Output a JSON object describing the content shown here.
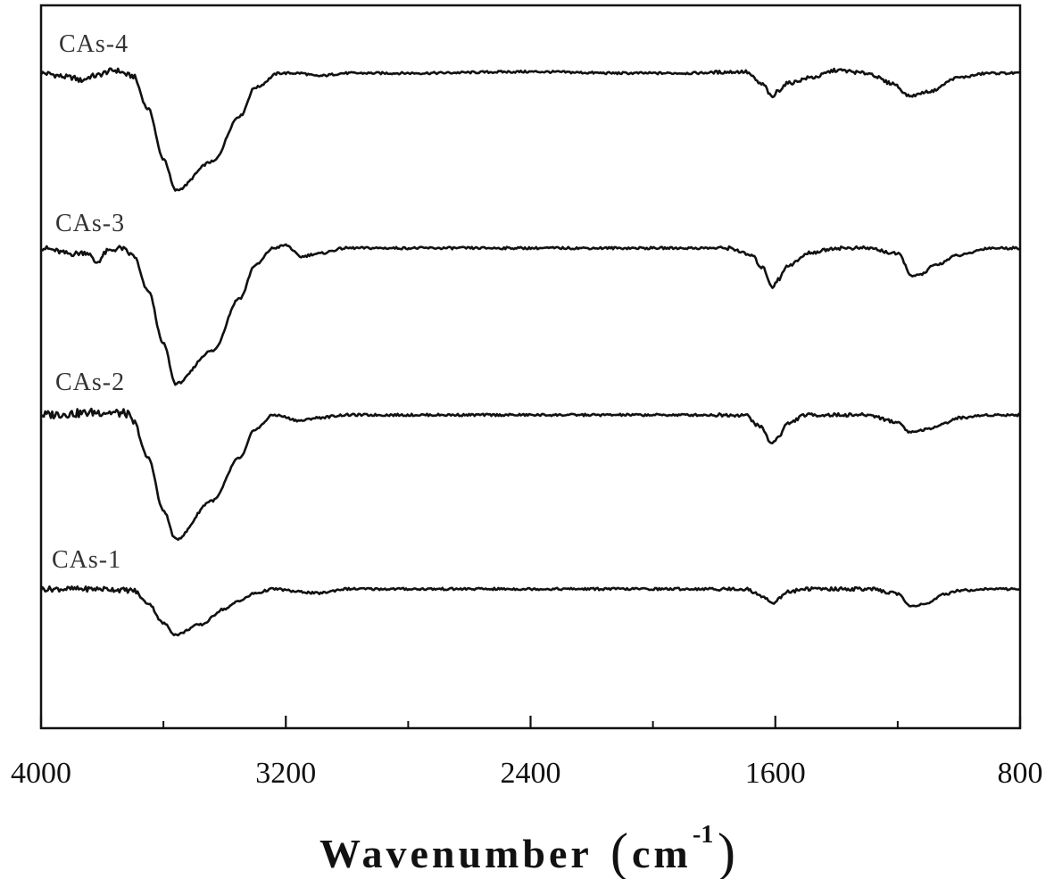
{
  "chart_data": {
    "type": "line",
    "title": "",
    "xlabel": "Wavenumber",
    "xlabel_unit_open": "(",
    "xlabel_unit": "cm",
    "xlabel_unit_exp": "-1",
    "xlabel_unit_close": ")",
    "ylabel": "",
    "xlim": [
      4000,
      800
    ],
    "x_reversed": true,
    "x_ticks": [
      "4000",
      "3200",
      "2400",
      "1600",
      "800"
    ],
    "x_tick_values": [
      4000,
      3200,
      2400,
      1600,
      800
    ],
    "x_minor_ticks": [
      3600,
      2800,
      2000,
      1200
    ],
    "y_ticks_shown": false,
    "grid": false,
    "legend": "none",
    "series": [
      {
        "name": "CAs-4",
        "offset": 3,
        "points": [
          [
            4000,
            0
          ],
          [
            3900,
            -0.03
          ],
          [
            3870,
            -0.05
          ],
          [
            3830,
            -0.02
          ],
          [
            3760,
            0.02
          ],
          [
            3700,
            -0.02
          ],
          [
            3650,
            -0.25
          ],
          [
            3600,
            -0.6
          ],
          [
            3560,
            -0.82
          ],
          [
            3440,
            -0.62
          ],
          [
            3350,
            -0.3
          ],
          [
            3300,
            -0.1
          ],
          [
            3220,
            0
          ],
          [
            3150,
            0
          ],
          [
            3100,
            -0.02
          ],
          [
            3000,
            0
          ],
          [
            2800,
            0
          ],
          [
            2400,
            0.01
          ],
          [
            2100,
            0
          ],
          [
            1900,
            0
          ],
          [
            1700,
            0.01
          ],
          [
            1640,
            -0.08
          ],
          [
            1610,
            -0.17
          ],
          [
            1590,
            -0.12
          ],
          [
            1560,
            -0.07
          ],
          [
            1480,
            -0.03
          ],
          [
            1400,
            0.02
          ],
          [
            1300,
            0
          ],
          [
            1220,
            -0.07
          ],
          [
            1160,
            -0.16
          ],
          [
            1100,
            -0.13
          ],
          [
            1000,
            -0.03
          ],
          [
            900,
            0
          ],
          [
            800,
            0
          ]
        ]
      },
      {
        "name": "CAs-3",
        "offset": 2,
        "points": [
          [
            4000,
            0
          ],
          [
            3900,
            -0.04
          ],
          [
            3850,
            -0.03
          ],
          [
            3820,
            -0.1
          ],
          [
            3780,
            -0.02
          ],
          [
            3740,
            0
          ],
          [
            3700,
            -0.05
          ],
          [
            3650,
            -0.3
          ],
          [
            3600,
            -0.67
          ],
          [
            3560,
            -0.95
          ],
          [
            3440,
            -0.72
          ],
          [
            3350,
            -0.35
          ],
          [
            3300,
            -0.12
          ],
          [
            3240,
            0
          ],
          [
            3200,
            0.02
          ],
          [
            3150,
            -0.06
          ],
          [
            3100,
            -0.04
          ],
          [
            3000,
            0
          ],
          [
            2800,
            0
          ],
          [
            2400,
            0
          ],
          [
            2000,
            0
          ],
          [
            1750,
            0
          ],
          [
            1680,
            -0.05
          ],
          [
            1640,
            -0.14
          ],
          [
            1610,
            -0.27
          ],
          [
            1590,
            -0.22
          ],
          [
            1560,
            -0.12
          ],
          [
            1480,
            -0.03
          ],
          [
            1400,
            0
          ],
          [
            1300,
            0
          ],
          [
            1200,
            -0.04
          ],
          [
            1150,
            -0.2
          ],
          [
            1120,
            -0.18
          ],
          [
            1080,
            -0.12
          ],
          [
            1000,
            -0.05
          ],
          [
            900,
            0
          ],
          [
            800,
            0
          ]
        ]
      },
      {
        "name": "CAs-2",
        "offset": 1,
        "points": [
          [
            4000,
            0
          ],
          [
            3900,
            0.01
          ],
          [
            3800,
            0.02
          ],
          [
            3720,
            0.01
          ],
          [
            3700,
            -0.05
          ],
          [
            3650,
            -0.3
          ],
          [
            3600,
            -0.67
          ],
          [
            3560,
            -0.87
          ],
          [
            3440,
            -0.6
          ],
          [
            3350,
            -0.3
          ],
          [
            3300,
            -0.1
          ],
          [
            3240,
            0
          ],
          [
            3150,
            -0.04
          ],
          [
            3100,
            -0.02
          ],
          [
            3000,
            0
          ],
          [
            2400,
            0
          ],
          [
            2000,
            0
          ],
          [
            1700,
            0
          ],
          [
            1650,
            -0.08
          ],
          [
            1610,
            -0.2
          ],
          [
            1590,
            -0.15
          ],
          [
            1560,
            -0.06
          ],
          [
            1500,
            0
          ],
          [
            1400,
            0
          ],
          [
            1300,
            0
          ],
          [
            1200,
            -0.05
          ],
          [
            1160,
            -0.12
          ],
          [
            1100,
            -0.1
          ],
          [
            1050,
            -0.06
          ],
          [
            1000,
            -0.02
          ],
          [
            900,
            0
          ],
          [
            800,
            0
          ]
        ]
      },
      {
        "name": "CAs-1",
        "offset": 0,
        "points": [
          [
            4000,
            0
          ],
          [
            3800,
            0
          ],
          [
            3700,
            -0.01
          ],
          [
            3650,
            -0.1
          ],
          [
            3600,
            -0.24
          ],
          [
            3560,
            -0.32
          ],
          [
            3480,
            -0.25
          ],
          [
            3400,
            -0.14
          ],
          [
            3350,
            -0.08
          ],
          [
            3300,
            -0.03
          ],
          [
            3240,
            0
          ],
          [
            3150,
            -0.02
          ],
          [
            3100,
            -0.03
          ],
          [
            3000,
            0
          ],
          [
            2400,
            0
          ],
          [
            2000,
            0
          ],
          [
            1700,
            0
          ],
          [
            1640,
            -0.05
          ],
          [
            1610,
            -0.1
          ],
          [
            1590,
            -0.07
          ],
          [
            1560,
            -0.02
          ],
          [
            1500,
            0
          ],
          [
            1300,
            0
          ],
          [
            1200,
            -0.03
          ],
          [
            1160,
            -0.12
          ],
          [
            1100,
            -0.1
          ],
          [
            1050,
            -0.04
          ],
          [
            1000,
            -0.01
          ],
          [
            900,
            0
          ],
          [
            800,
            0
          ]
        ]
      }
    ]
  }
}
